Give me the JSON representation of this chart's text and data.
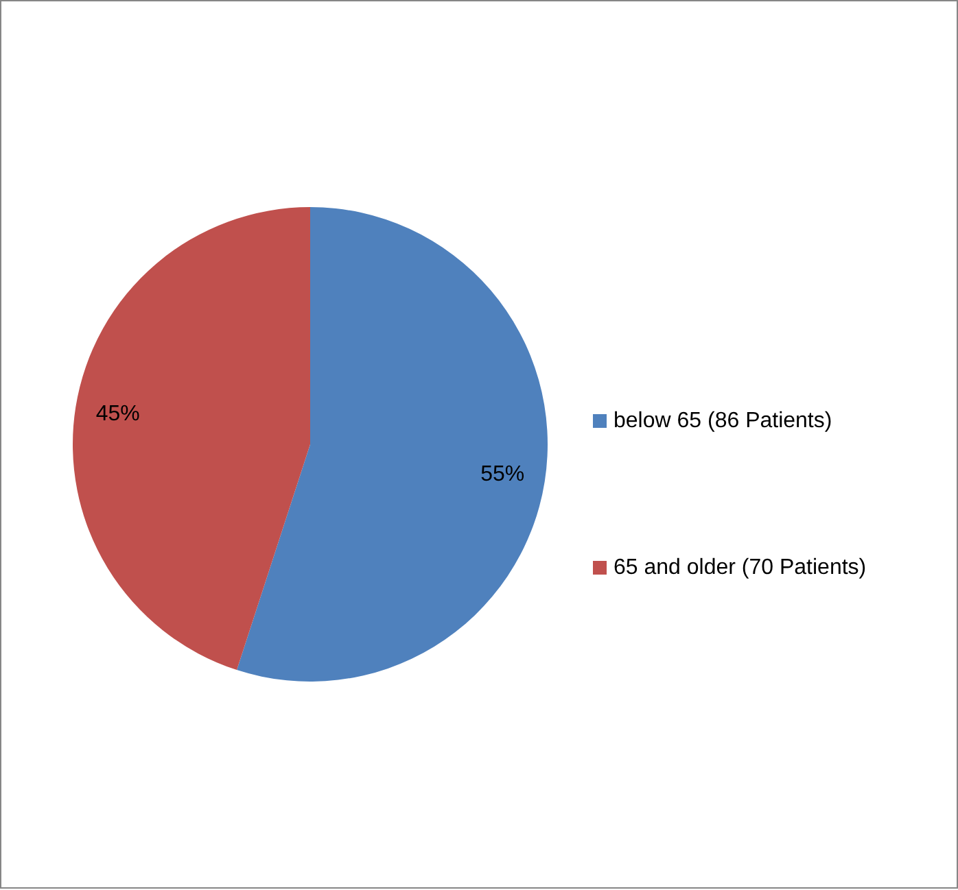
{
  "chart_data": {
    "type": "pie",
    "categories": [
      "below 65 (86 Patients)",
      "65 and older (70 Patients)"
    ],
    "values": [
      55,
      45
    ],
    "colors": [
      "#4f81bd",
      "#c0504d"
    ],
    "value_labels": [
      "55%",
      "45%"
    ],
    "legend": "right"
  }
}
